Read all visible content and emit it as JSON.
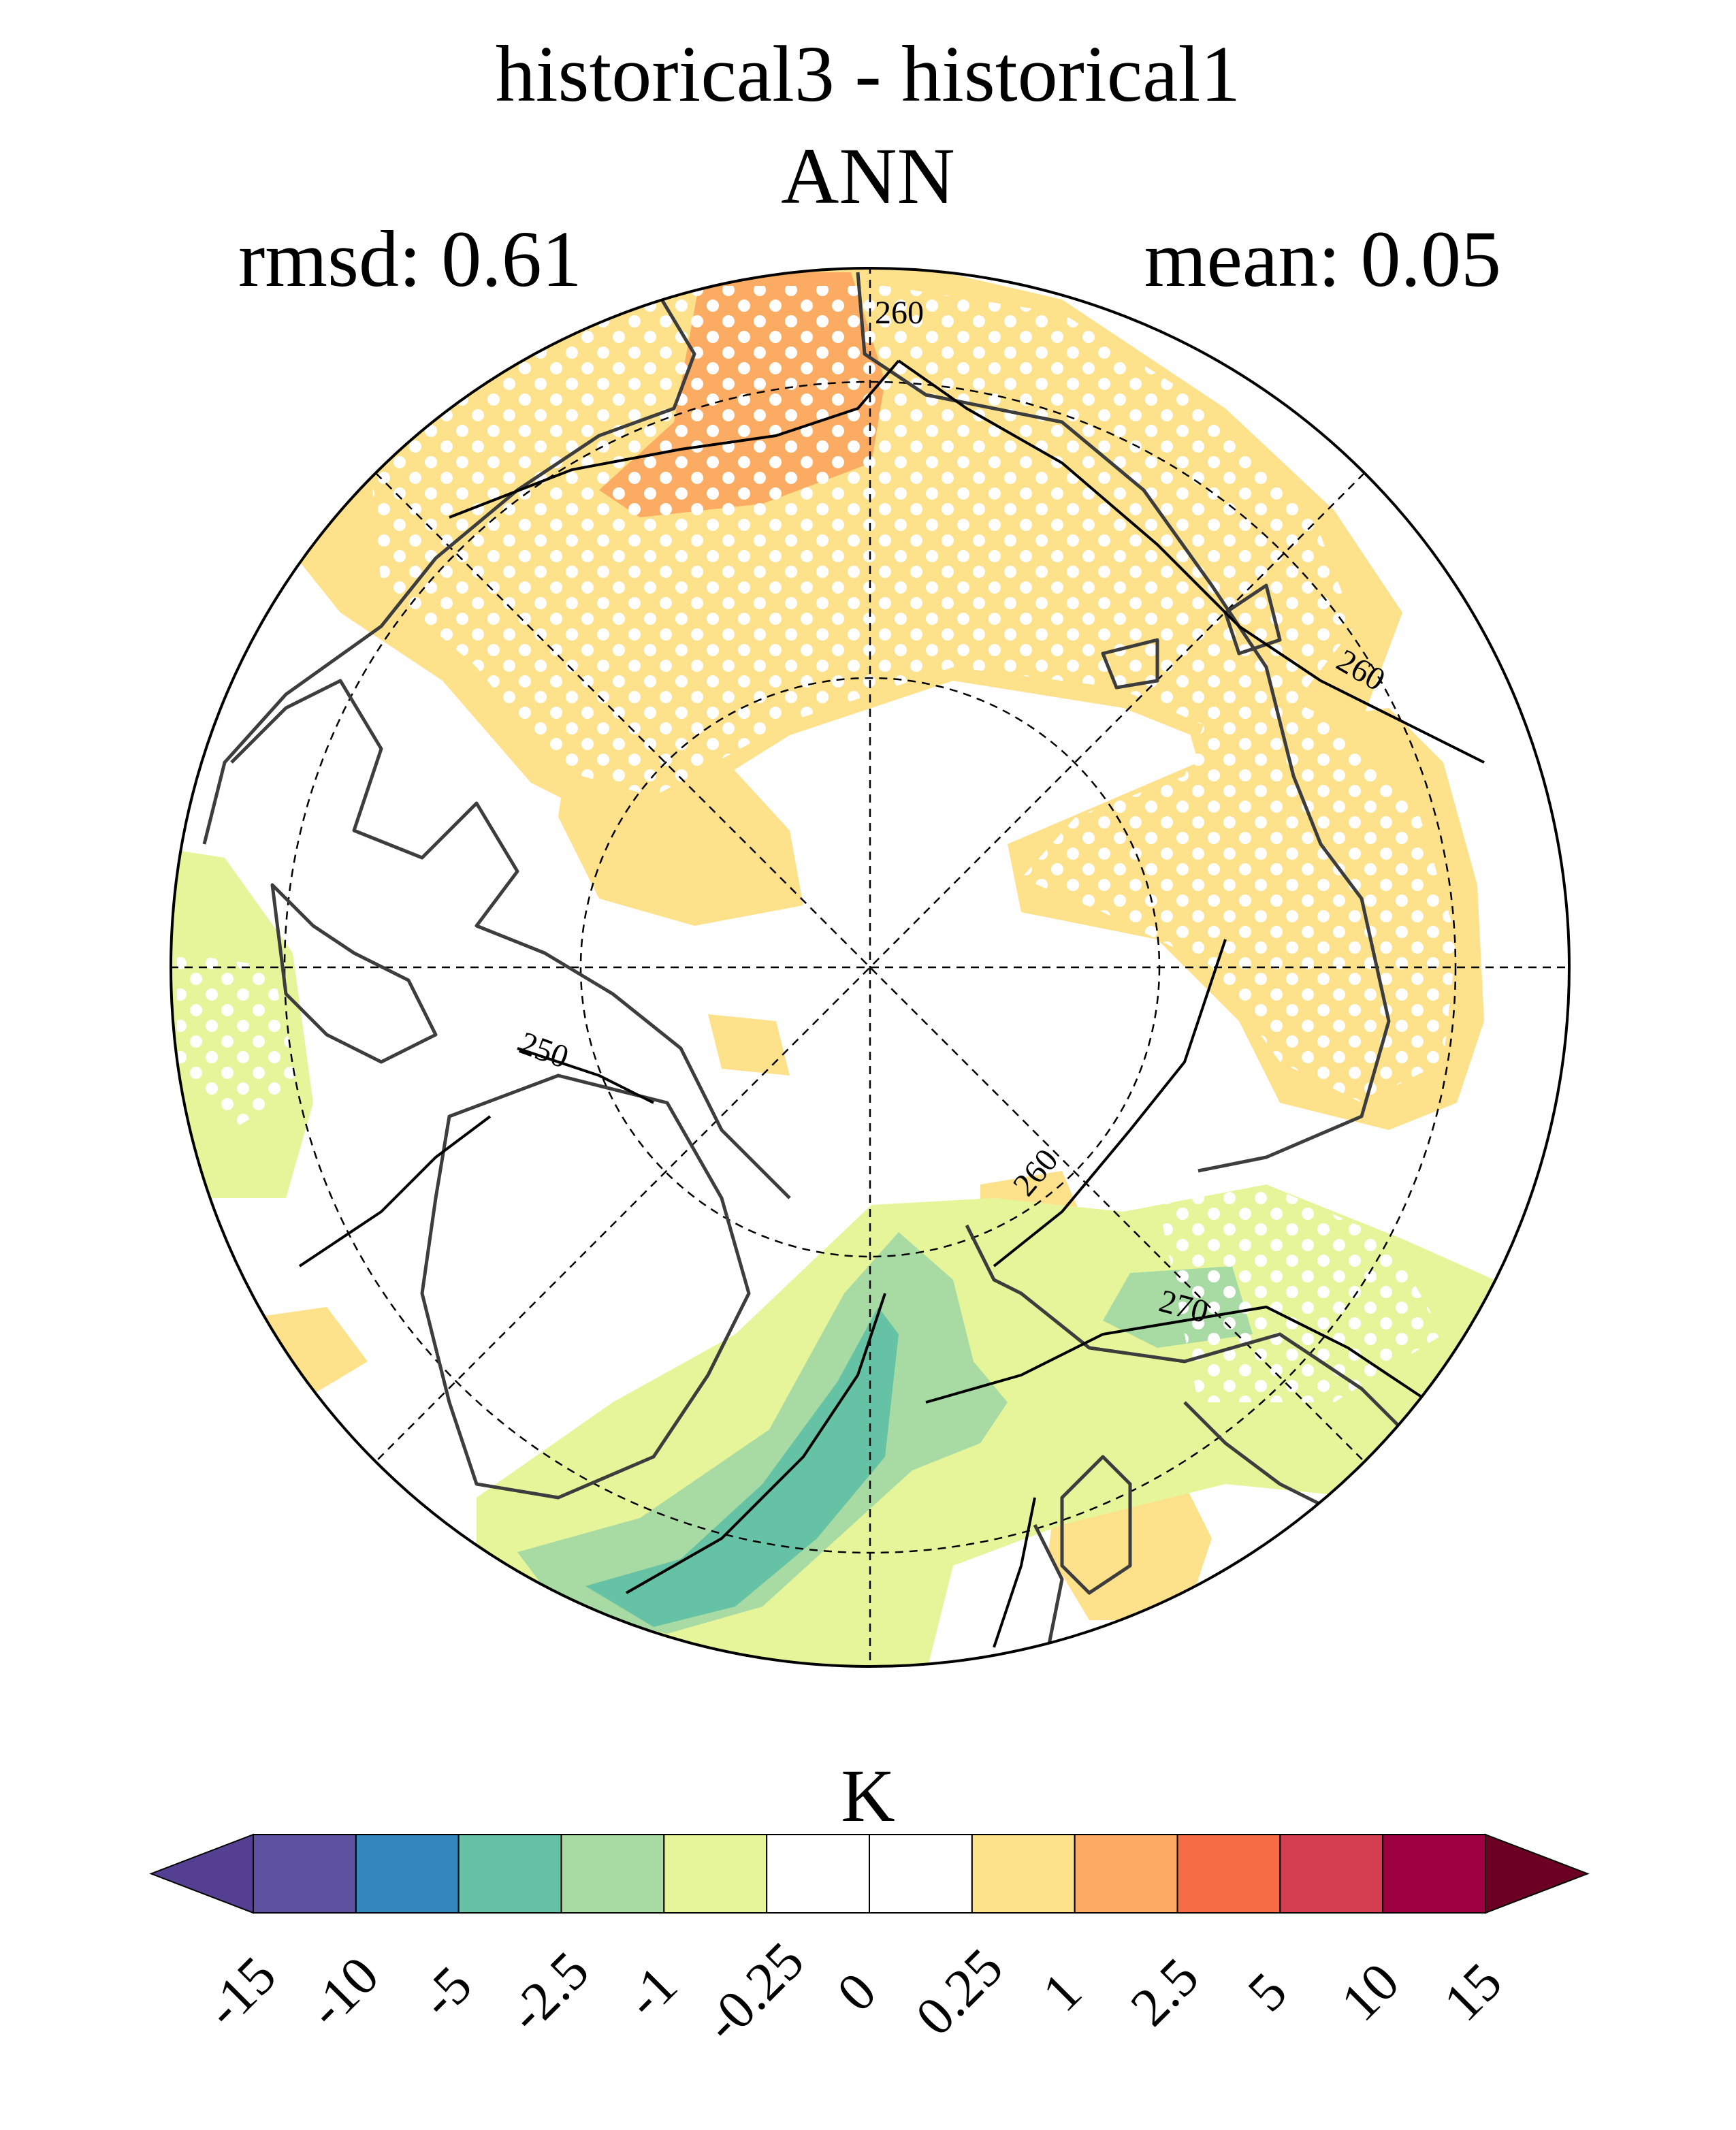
{
  "title": {
    "line1": "historical3 - historical1",
    "line2": "ANN",
    "rmsd": "rmsd: 0.61",
    "mean": "mean: 0.05"
  },
  "map": {
    "projection": "north polar stereographic",
    "contour_labels": [
      "260",
      "260",
      "250",
      "260",
      "270"
    ],
    "stippling": "dots where difference is significant"
  },
  "colorbar": {
    "unit": "K",
    "ticks": [
      "-15",
      "-10",
      "-5",
      "-2.5",
      "-1",
      "-0.25",
      "0",
      "0.25",
      "1",
      "2.5",
      "5",
      "10",
      "15"
    ],
    "colors": [
      "#543f92",
      "#5e51a1",
      "#3186bd",
      "#65c2a4",
      "#a8dba4",
      "#e6f599",
      "#ffffff",
      "#ffffff",
      "#fde18b",
      "#fbac62",
      "#f46b44",
      "#d53e4f",
      "#9e0142",
      "#6b0024"
    ]
  }
}
